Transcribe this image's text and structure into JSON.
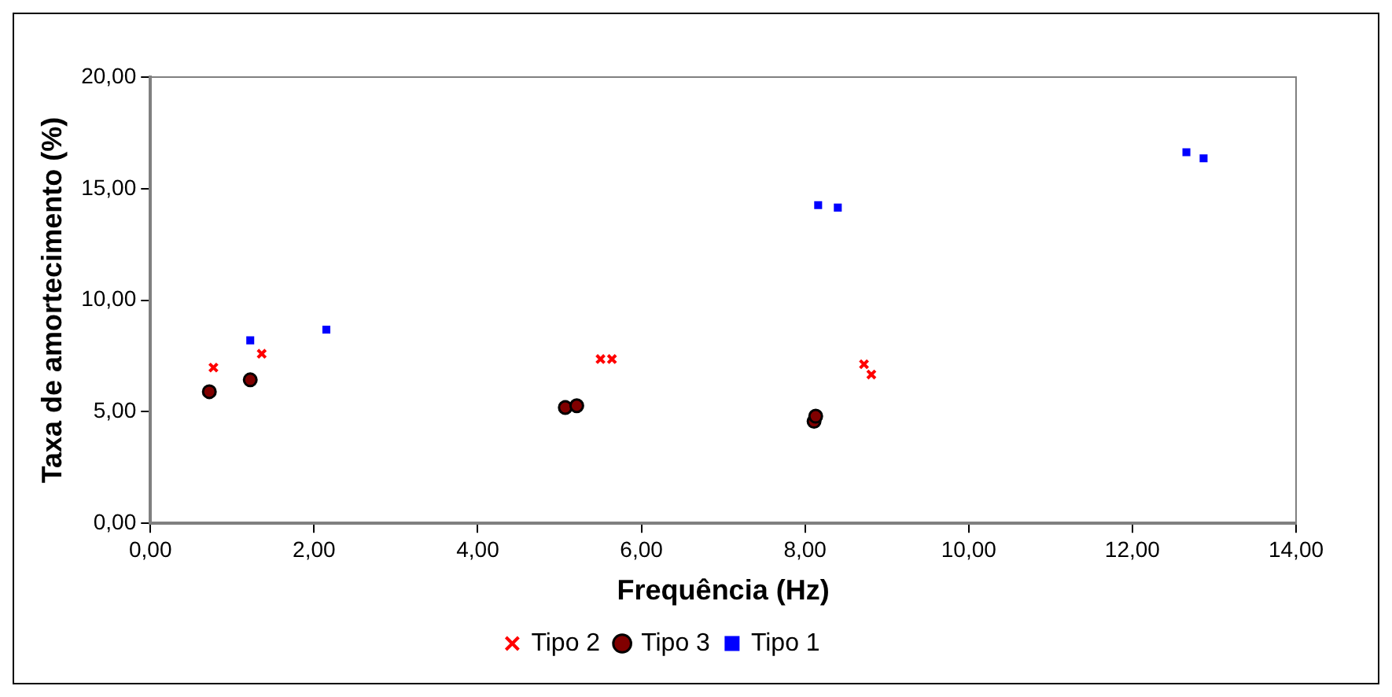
{
  "chart_data": {
    "type": "scatter",
    "xlabel": "Frequência (Hz)",
    "ylabel": "Taxa de amortecimento (%)",
    "xlim": [
      0,
      14
    ],
    "ylim": [
      0,
      20
    ],
    "xticks": [
      {
        "value": 0,
        "label": "0,00"
      },
      {
        "value": 2,
        "label": "2,00"
      },
      {
        "value": 4,
        "label": "4,00"
      },
      {
        "value": 6,
        "label": "6,00"
      },
      {
        "value": 8,
        "label": "8,00"
      },
      {
        "value": 10,
        "label": "10,00"
      },
      {
        "value": 12,
        "label": "12,00"
      },
      {
        "value": 14,
        "label": "14,00"
      }
    ],
    "yticks": [
      {
        "value": 0,
        "label": "0,00"
      },
      {
        "value": 5,
        "label": "5,00"
      },
      {
        "value": 10,
        "label": "10,00"
      },
      {
        "value": 15,
        "label": "15,00"
      },
      {
        "value": 20,
        "label": "20,00"
      }
    ],
    "grid": false,
    "legend": "bottom",
    "series": [
      {
        "name": "Tipo 2",
        "color": "#ff0000",
        "marker": "cross",
        "x": [
          0.77,
          1.36,
          5.5,
          5.64,
          8.72,
          8.81
        ],
        "values": [
          6.98,
          7.6,
          7.36,
          7.36,
          7.13,
          6.67
        ]
      },
      {
        "name": "Tipo 3",
        "color": "#800000",
        "marker": "circle",
        "x": [
          0.72,
          1.22,
          5.07,
          5.21,
          8.11,
          8.13
        ],
        "values": [
          5.9,
          6.43,
          5.19,
          5.27,
          4.57,
          4.8
        ]
      },
      {
        "name": "Tipo 1",
        "color": "#0000ff",
        "marker": "square",
        "x": [
          1.22,
          2.15,
          8.16,
          8.4,
          12.66,
          12.87
        ],
        "values": [
          8.2,
          8.68,
          14.26,
          14.15,
          16.63,
          16.36
        ]
      }
    ]
  }
}
